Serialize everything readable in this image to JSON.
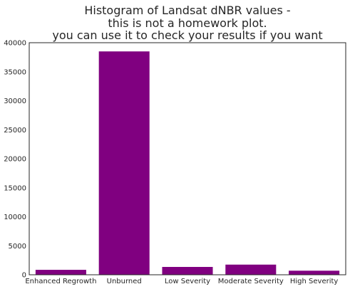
{
  "chart_data": {
    "type": "bar",
    "title_lines": [
      "Histogram of Landsat dNBR values -",
      "this is not a homework plot.",
      "you can use it to check your results if you want"
    ],
    "xlabel": "",
    "ylabel": "",
    "categories": [
      "Enhanced Regrowth",
      "Unburned",
      "Low Severity",
      "Moderate Severity",
      "High Severity"
    ],
    "values": [
      850,
      38500,
      1350,
      1750,
      700
    ],
    "ylim": [
      0,
      40000
    ],
    "yticks": [
      0,
      5000,
      10000,
      15000,
      20000,
      25000,
      30000,
      35000,
      40000
    ],
    "bar_color": "#800080",
    "grid": false
  }
}
